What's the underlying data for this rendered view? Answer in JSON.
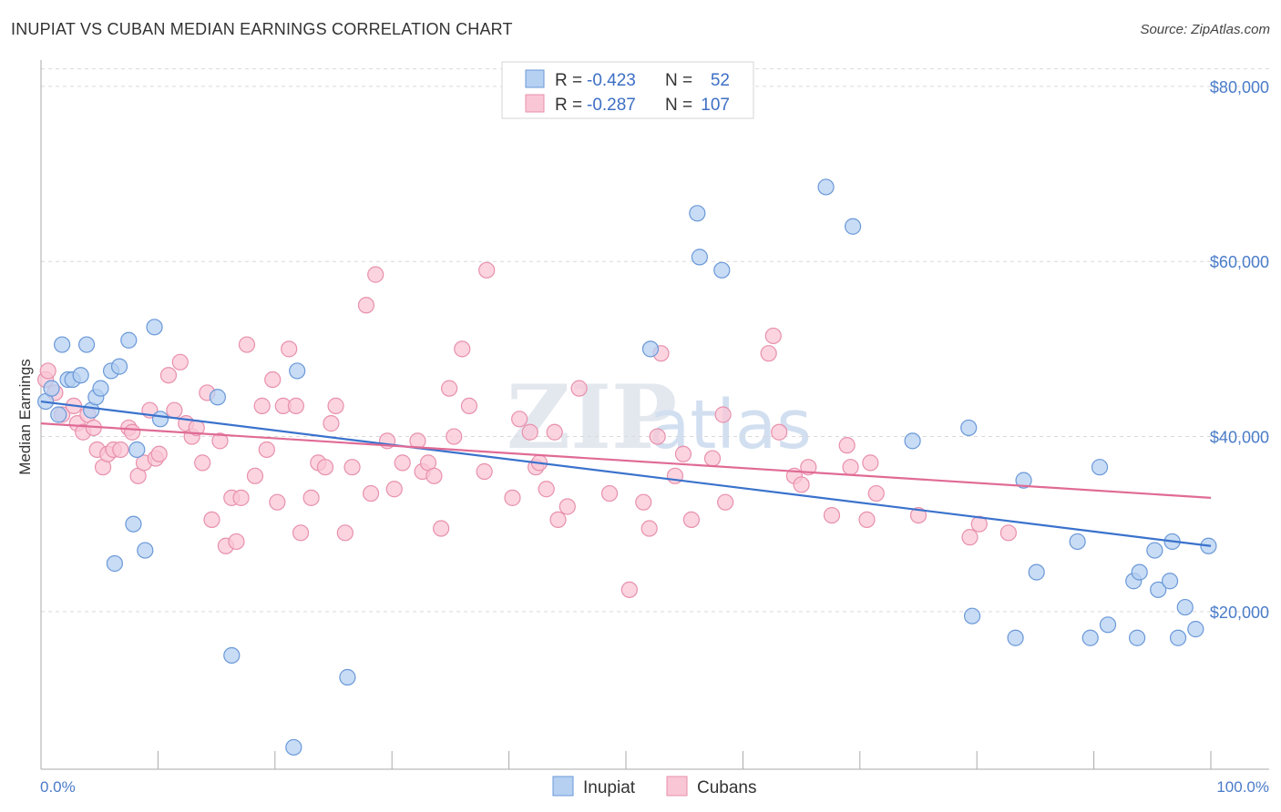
{
  "header": {
    "title": "INUPIAT VS CUBAN MEDIAN EARNINGS CORRELATION CHART",
    "source": "Source: ZipAtlas.com"
  },
  "watermark": {
    "part1": "ZIP",
    "part2": "atlas"
  },
  "legend": {
    "rows": [
      {
        "r_label": "R =",
        "r_value": "-0.423",
        "n_label": "N =",
        "n_value": "52"
      },
      {
        "r_label": "R =",
        "r_value": "-0.287",
        "n_label": "N =",
        "n_value": "107"
      }
    ]
  },
  "bottom_legend": [
    {
      "label": "Inupiat"
    },
    {
      "label": "Cubans"
    }
  ],
  "colors": {
    "inupiat_fill": "#b6d0f2",
    "inupiat_stroke": "#6a98d8",
    "inupiat_line": "#3a72cc",
    "cubans_fill": "#f9c6d5",
    "cubans_stroke": "#e890ac",
    "cubans_line": "#e06b95",
    "tick_text": "#4a7cc8",
    "grid": "#d9d9d9"
  },
  "chart_data": {
    "type": "scatter",
    "title": "INUPIAT VS CUBAN MEDIAN EARNINGS CORRELATION CHART",
    "xlabel": "",
    "ylabel": "Median Earnings",
    "xlim": [
      0,
      100
    ],
    "ylim": [
      2000,
      83000
    ],
    "x_tick_labels": [
      "0.0%",
      "100.0%"
    ],
    "y_ticks": [
      {
        "value": 20000,
        "label": "$20,000"
      },
      {
        "value": 40000,
        "label": "$40,000"
      },
      {
        "value": 60000,
        "label": "$60,000"
      },
      {
        "value": 80000,
        "label": "$80,000"
      }
    ],
    "series": [
      {
        "name": "Inupiat",
        "r": -0.423,
        "n": 52,
        "trend": {
          "x0": 0,
          "y0": 44000,
          "x1": 100,
          "y1": 27500
        },
        "points": [
          [
            0.4,
            44000
          ],
          [
            0.9,
            45500
          ],
          [
            1.5,
            42500
          ],
          [
            1.8,
            50500
          ],
          [
            2.3,
            46500
          ],
          [
            2.7,
            46500
          ],
          [
            3.4,
            47000
          ],
          [
            3.9,
            50500
          ],
          [
            4.3,
            43000
          ],
          [
            4.7,
            44500
          ],
          [
            5.1,
            45500
          ],
          [
            6.0,
            47500
          ],
          [
            6.3,
            25500
          ],
          [
            6.7,
            48000
          ],
          [
            7.5,
            51000
          ],
          [
            7.9,
            30000
          ],
          [
            8.2,
            38500
          ],
          [
            8.9,
            27000
          ],
          [
            9.7,
            52500
          ],
          [
            10.2,
            42000
          ],
          [
            15.1,
            44500
          ],
          [
            16.3,
            15000
          ],
          [
            21.6,
            4500
          ],
          [
            21.9,
            47500
          ],
          [
            26.2,
            12500
          ],
          [
            52.1,
            50000
          ],
          [
            56.1,
            65500
          ],
          [
            56.3,
            60500
          ],
          [
            58.2,
            59000
          ],
          [
            67.1,
            68500
          ],
          [
            69.4,
            64000
          ],
          [
            74.5,
            39500
          ],
          [
            79.3,
            41000
          ],
          [
            79.6,
            19500
          ],
          [
            83.3,
            17000
          ],
          [
            84.0,
            35000
          ],
          [
            85.1,
            24500
          ],
          [
            88.6,
            28000
          ],
          [
            89.7,
            17000
          ],
          [
            90.5,
            36500
          ],
          [
            91.2,
            18500
          ],
          [
            93.4,
            23500
          ],
          [
            93.7,
            17000
          ],
          [
            93.9,
            24500
          ],
          [
            95.2,
            27000
          ],
          [
            95.5,
            22500
          ],
          [
            96.5,
            23500
          ],
          [
            96.7,
            28000
          ],
          [
            97.2,
            17000
          ],
          [
            97.8,
            20500
          ],
          [
            98.7,
            18000
          ],
          [
            99.8,
            27500
          ]
        ]
      },
      {
        "name": "Cubans",
        "r": -0.287,
        "n": 107,
        "trend": {
          "x0": 0,
          "y0": 41500,
          "x1": 100,
          "y1": 33000
        },
        "points": [
          [
            0.4,
            46500
          ],
          [
            0.6,
            47500
          ],
          [
            1.2,
            45000
          ],
          [
            1.8,
            42500
          ],
          [
            2.8,
            43500
          ],
          [
            3.1,
            41500
          ],
          [
            3.6,
            40500
          ],
          [
            4.0,
            42500
          ],
          [
            4.5,
            41000
          ],
          [
            4.8,
            38500
          ],
          [
            5.3,
            36500
          ],
          [
            5.7,
            38000
          ],
          [
            6.2,
            38500
          ],
          [
            6.8,
            38500
          ],
          [
            7.5,
            41000
          ],
          [
            7.8,
            40500
          ],
          [
            8.3,
            35500
          ],
          [
            8.8,
            37000
          ],
          [
            9.3,
            43000
          ],
          [
            9.8,
            37500
          ],
          [
            10.1,
            38000
          ],
          [
            10.9,
            47000
          ],
          [
            11.4,
            43000
          ],
          [
            11.9,
            48500
          ],
          [
            12.4,
            41500
          ],
          [
            12.9,
            40000
          ],
          [
            13.3,
            41000
          ],
          [
            13.8,
            37000
          ],
          [
            14.2,
            45000
          ],
          [
            14.6,
            30500
          ],
          [
            15.3,
            39500
          ],
          [
            15.8,
            27500
          ],
          [
            16.3,
            33000
          ],
          [
            16.7,
            28000
          ],
          [
            17.1,
            33000
          ],
          [
            17.6,
            50500
          ],
          [
            18.3,
            35500
          ],
          [
            18.9,
            43500
          ],
          [
            19.3,
            38500
          ],
          [
            19.8,
            46500
          ],
          [
            20.2,
            32500
          ],
          [
            20.7,
            43500
          ],
          [
            21.2,
            50000
          ],
          [
            21.8,
            43500
          ],
          [
            22.2,
            29000
          ],
          [
            23.1,
            33000
          ],
          [
            23.7,
            37000
          ],
          [
            24.3,
            36500
          ],
          [
            24.8,
            41500
          ],
          [
            25.2,
            43500
          ],
          [
            26.0,
            29000
          ],
          [
            26.6,
            36500
          ],
          [
            27.8,
            55000
          ],
          [
            28.2,
            33500
          ],
          [
            28.6,
            58500
          ],
          [
            29.6,
            39500
          ],
          [
            30.2,
            34000
          ],
          [
            30.9,
            37000
          ],
          [
            32.2,
            39500
          ],
          [
            32.6,
            36000
          ],
          [
            33.1,
            37000
          ],
          [
            33.6,
            35500
          ],
          [
            34.2,
            29500
          ],
          [
            34.9,
            45500
          ],
          [
            35.3,
            40000
          ],
          [
            36.0,
            50000
          ],
          [
            36.6,
            43500
          ],
          [
            37.9,
            36000
          ],
          [
            38.1,
            59000
          ],
          [
            40.3,
            33000
          ],
          [
            40.9,
            42000
          ],
          [
            41.8,
            40500
          ],
          [
            42.3,
            36500
          ],
          [
            42.6,
            37000
          ],
          [
            43.2,
            34000
          ],
          [
            43.9,
            40500
          ],
          [
            44.2,
            30500
          ],
          [
            45.0,
            32000
          ],
          [
            46.0,
            45500
          ],
          [
            48.6,
            33500
          ],
          [
            50.3,
            22500
          ],
          [
            51.5,
            32500
          ],
          [
            52.0,
            29500
          ],
          [
            52.7,
            40000
          ],
          [
            53.0,
            49500
          ],
          [
            54.2,
            35500
          ],
          [
            54.9,
            38000
          ],
          [
            55.6,
            30500
          ],
          [
            57.4,
            37500
          ],
          [
            58.3,
            42500
          ],
          [
            58.5,
            32500
          ],
          [
            62.2,
            49500
          ],
          [
            62.6,
            51500
          ],
          [
            63.1,
            40500
          ],
          [
            64.4,
            35500
          ],
          [
            65.0,
            34500
          ],
          [
            65.6,
            36500
          ],
          [
            67.6,
            31000
          ],
          [
            68.9,
            39000
          ],
          [
            69.2,
            36500
          ],
          [
            70.6,
            30500
          ],
          [
            70.9,
            37000
          ],
          [
            71.4,
            33500
          ],
          [
            75.0,
            31000
          ],
          [
            79.4,
            28500
          ],
          [
            80.2,
            30000
          ],
          [
            82.7,
            29000
          ]
        ]
      }
    ]
  }
}
